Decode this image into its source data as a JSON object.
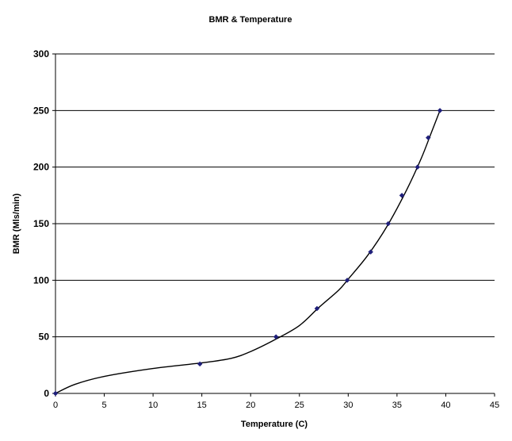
{
  "chart_data": {
    "type": "scatter",
    "title": "BMR & Temperature",
    "xlabel": "Temperature (C)",
    "ylabel": "BMR (Mls/min)",
    "xlim": [
      0,
      45
    ],
    "ylim": [
      0,
      300
    ],
    "xticks": [
      0,
      5,
      10,
      15,
      20,
      25,
      30,
      35,
      40,
      45
    ],
    "yticks": [
      0,
      50,
      100,
      150,
      200,
      250,
      300
    ],
    "grid": "horizontal major gridlines",
    "legend": "none",
    "colors": {
      "marker": "#1f1f7a",
      "curve": "#000000",
      "grid": "#000000",
      "plot_background": "#ffffff"
    },
    "series": [
      {
        "points": [
          {
            "x": 0,
            "y": 0
          },
          {
            "x": 14.8,
            "y": 26
          },
          {
            "x": 22.6,
            "y": 50
          },
          {
            "x": 26.8,
            "y": 75
          },
          {
            "x": 29.9,
            "y": 100
          },
          {
            "x": 32.3,
            "y": 125
          },
          {
            "x": 34.1,
            "y": 150
          },
          {
            "x": 35.5,
            "y": 175
          },
          {
            "x": 37.1,
            "y": 200
          },
          {
            "x": 38.2,
            "y": 226
          },
          {
            "x": 39.4,
            "y": 250
          }
        ]
      }
    ],
    "trendline": {
      "type": "smooth curve",
      "points": [
        {
          "x": 0,
          "y": 0
        },
        {
          "x": 2,
          "y": 8
        },
        {
          "x": 5,
          "y": 15
        },
        {
          "x": 10,
          "y": 22
        },
        {
          "x": 15,
          "y": 27
        },
        {
          "x": 18,
          "y": 31
        },
        {
          "x": 20,
          "y": 37
        },
        {
          "x": 22.6,
          "y": 48
        },
        {
          "x": 25,
          "y": 60
        },
        {
          "x": 27,
          "y": 76
        },
        {
          "x": 29,
          "y": 91
        },
        {
          "x": 30,
          "y": 101
        },
        {
          "x": 32,
          "y": 122
        },
        {
          "x": 34,
          "y": 148
        },
        {
          "x": 36,
          "y": 180
        },
        {
          "x": 37.5,
          "y": 208
        },
        {
          "x": 38.5,
          "y": 230
        },
        {
          "x": 39.4,
          "y": 250
        }
      ]
    }
  }
}
